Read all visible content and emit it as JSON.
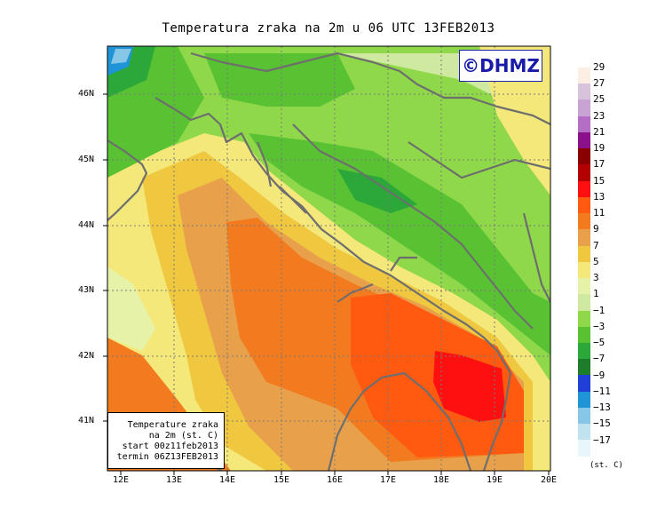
{
  "title": "Temperatura zraka na 2m u 06 UTC 13FEB2013",
  "logo_text": "©DHMZ",
  "infobox": {
    "line1": "Temperature zraka",
    "line2": "na 2m (st. C)",
    "line3": "start 00z11feb2013",
    "line4": "termin 06Z13FEB2013"
  },
  "lat_labels": [
    "46N",
    "45N",
    "44N",
    "43N",
    "42N",
    "41N"
  ],
  "lon_labels": [
    "12E",
    "13E",
    "14E",
    "15E",
    "16E",
    "17E",
    "18E",
    "19E",
    "20E"
  ],
  "colorbar": {
    "labels": [
      "29",
      "27",
      "25",
      "23",
      "21",
      "19",
      "17",
      "15",
      "13",
      "11",
      "9",
      "7",
      "5",
      "3",
      "1",
      "−1",
      "−3",
      "−5",
      "−7",
      "−9",
      "−11",
      "−13",
      "−15",
      "−17"
    ],
    "colors": [
      "#fdeee3",
      "#d7c4dc",
      "#c9a3d3",
      "#b56ec6",
      "#8b108b",
      "#8a0000",
      "#b30000",
      "#ff1010",
      "#ff5a10",
      "#f27b1f",
      "#e8a04a",
      "#f0c840",
      "#f4e87a",
      "#e6f2a8",
      "#cfeaa0",
      "#8fd84a",
      "#58c232",
      "#2ca73a",
      "#1e7d2a",
      "#1f3fd7",
      "#1f95d8",
      "#86c6e7",
      "#c0e3ef",
      "#e8f6fa"
    ],
    "unit": "(st. C)"
  }
}
